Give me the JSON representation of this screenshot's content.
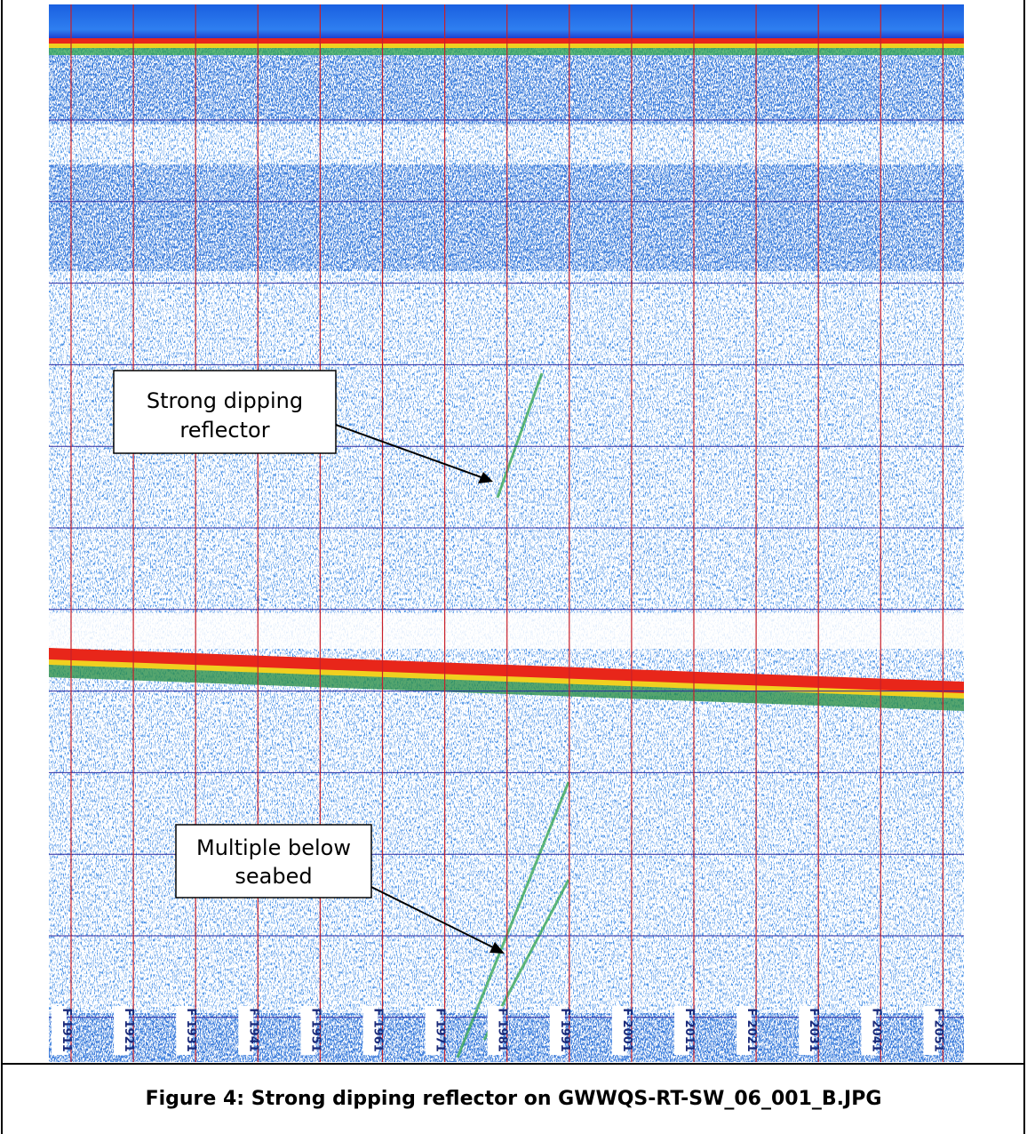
{
  "figure": {
    "annotations": [
      {
        "lines": [
          "Strong dipping",
          "reflector"
        ]
      },
      {
        "lines": [
          "Multiple below",
          "seabed"
        ]
      }
    ],
    "fix_labels": [
      "F 1911",
      "F 1921",
      "F 1931",
      "F 1941",
      "F 1951",
      "F 1961",
      "F 1971",
      "F 1981",
      "F 1991",
      "F 2001",
      "F 2011",
      "F 2021",
      "F 2031",
      "F 2041",
      "F 2051"
    ],
    "caption": "Figure 4: Strong dipping reflector on GWWQS-RT-SW_06_001_B.JPG"
  }
}
